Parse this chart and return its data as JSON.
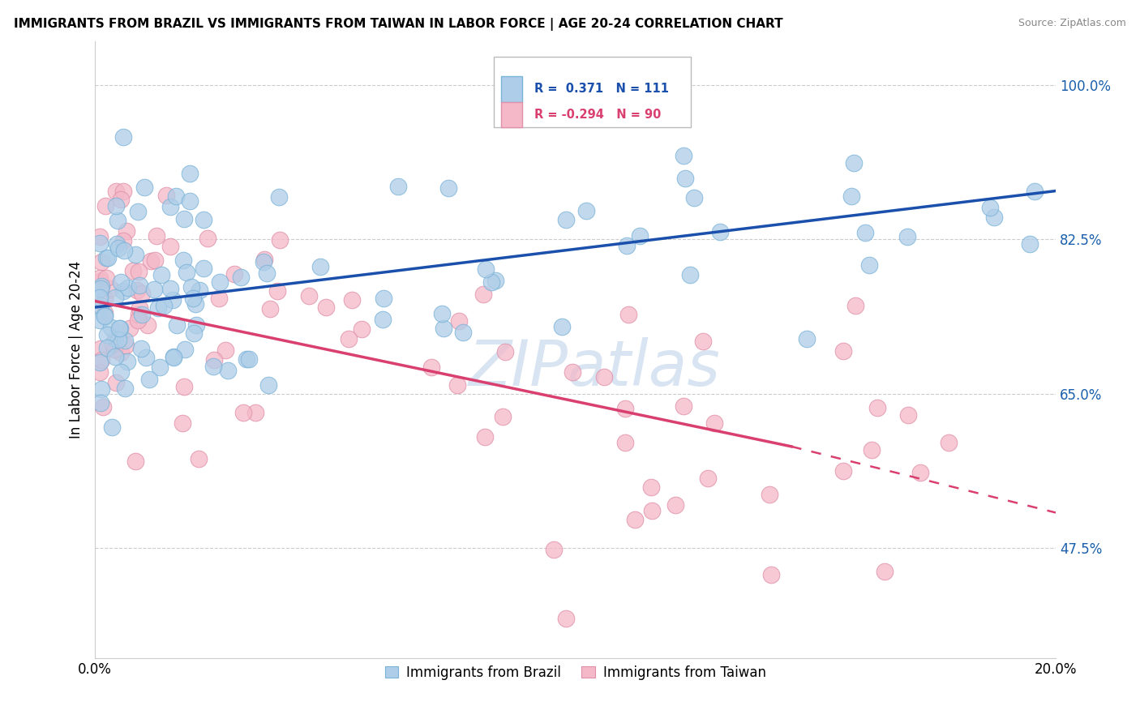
{
  "title": "IMMIGRANTS FROM BRAZIL VS IMMIGRANTS FROM TAIWAN IN LABOR FORCE | AGE 20-24 CORRELATION CHART",
  "source": "Source: ZipAtlas.com",
  "ylabel": "In Labor Force | Age 20-24",
  "legend_label_blue": "Immigrants from Brazil",
  "legend_label_pink": "Immigrants from Taiwan",
  "R_blue": 0.371,
  "N_blue": 111,
  "R_pink": -0.294,
  "N_pink": 90,
  "ytick_labels": [
    "47.5%",
    "65.0%",
    "82.5%",
    "100.0%"
  ],
  "ytick_values": [
    0.475,
    0.65,
    0.825,
    1.0
  ],
  "xmin": 0.0,
  "xmax": 0.2,
  "ymin": 0.35,
  "ymax": 1.05,
  "blue_color": "#aecde8",
  "blue_edge": "#7ab3d8",
  "pink_color": "#f4b8c8",
  "pink_edge": "#e090a8",
  "trendline_blue": "#1a4fac",
  "trendline_pink": "#d94070",
  "watermark": "ZIPatlas",
  "blue_trend_x0": 0.0,
  "blue_trend_y0": 0.748,
  "blue_trend_x1": 0.2,
  "blue_trend_y1": 0.88,
  "pink_trend_x0": 0.0,
  "pink_trend_y0": 0.755,
  "pink_trend_x1_solid": 0.145,
  "pink_trend_y1_solid": 0.59,
  "pink_trend_x1_dashed": 0.2,
  "pink_trend_y1_dashed": 0.515
}
